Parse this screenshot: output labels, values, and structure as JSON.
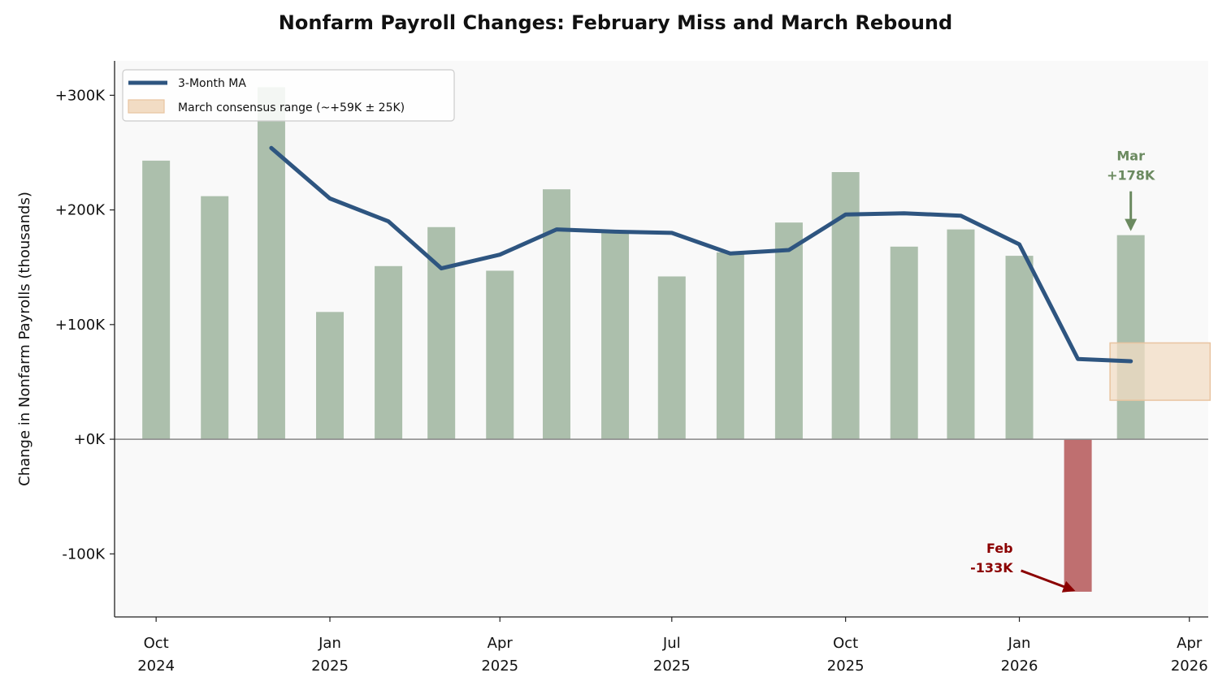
{
  "chart_data": {
    "type": "bar",
    "title": "Nonfarm Payroll Changes: February Miss and March Rebound",
    "xlabel": "",
    "ylabel": "Change in Nonfarm Payrolls (thousands)",
    "ylim": [
      -155,
      330
    ],
    "xlim": [
      "2024-09-09",
      "2026-04-11"
    ],
    "grid": false,
    "legend_position": "upper-left",
    "x_ticks": [
      {
        "date": "2024-10-01",
        "label": [
          "Oct",
          "2024"
        ]
      },
      {
        "date": "2025-01-01",
        "label": [
          "Jan",
          "2025"
        ]
      },
      {
        "date": "2025-04-01",
        "label": [
          "Apr",
          "2025"
        ]
      },
      {
        "date": "2025-07-01",
        "label": [
          "Jul",
          "2025"
        ]
      },
      {
        "date": "2025-10-01",
        "label": [
          "Oct",
          "2025"
        ]
      },
      {
        "date": "2026-01-01",
        "label": [
          "Jan",
          "2026"
        ]
      },
      {
        "date": "2026-04-01",
        "label": [
          "Apr",
          "2026"
        ]
      }
    ],
    "y_ticks": [
      {
        "value": -100,
        "label": "-100K"
      },
      {
        "value": 0,
        "label": "+0K"
      },
      {
        "value": 100,
        "label": "+100K"
      },
      {
        "value": 200,
        "label": "+200K"
      },
      {
        "value": 300,
        "label": "+300K"
      }
    ],
    "bars": {
      "dates": [
        "2024-10-01",
        "2024-11-01",
        "2024-12-01",
        "2025-01-01",
        "2025-02-01",
        "2025-03-01",
        "2025-04-01",
        "2025-05-01",
        "2025-06-01",
        "2025-07-01",
        "2025-08-01",
        "2025-09-01",
        "2025-10-01",
        "2025-11-01",
        "2025-12-01",
        "2026-01-01",
        "2026-02-01",
        "2026-03-01"
      ],
      "values": [
        243,
        212,
        307,
        111,
        151,
        185,
        147,
        218,
        180,
        142,
        163,
        189,
        233,
        168,
        183,
        160,
        -133,
        178
      ],
      "colors": {
        "positive": "#acbfac",
        "negative": "#bf6f70"
      }
    },
    "series": [
      {
        "name": "3-Month MA",
        "type": "line",
        "color": "#2e5580",
        "dates": [
          "2024-12-01",
          "2025-01-01",
          "2025-02-01",
          "2025-03-01",
          "2025-04-01",
          "2025-05-01",
          "2025-06-01",
          "2025-07-01",
          "2025-08-01",
          "2025-09-01",
          "2025-10-01",
          "2025-11-01",
          "2025-12-01",
          "2026-01-01",
          "2026-02-01",
          "2026-03-01"
        ],
        "values": [
          254,
          210,
          190,
          149,
          161,
          183,
          181,
          180,
          162,
          165,
          196,
          197,
          195,
          170,
          70,
          68
        ]
      }
    ],
    "band": {
      "name": "March consensus range (~+59K ± 25K)",
      "date_start": "2026-02-18",
      "date_end": "2026-04-12",
      "y_low": 34,
      "y_high": 84,
      "color": "#f2dcc4"
    },
    "annotations": [
      {
        "id": "feb",
        "lines": [
          "Feb",
          "-133K"
        ],
        "target_date": "2026-02-01",
        "target_value": -133,
        "color": "#8b0000"
      },
      {
        "id": "mar",
        "lines": [
          "Mar",
          "+178K"
        ],
        "target_date": "2026-03-01",
        "target_value": 178,
        "color": "#6b8a60"
      }
    ]
  }
}
